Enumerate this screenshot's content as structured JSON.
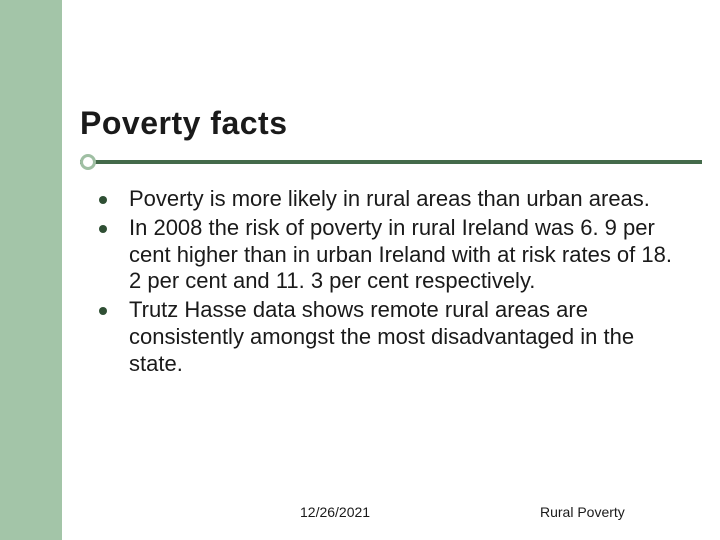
{
  "accent_color": "#a3c5a8",
  "underline_color": "#446a4a",
  "dot_border_color": "#9fbfa3",
  "bullet_color": "#2f4f34",
  "text_color": "#1a1a1a",
  "background_color": "#ffffff",
  "title": "Poverty facts",
  "title_fontsize": 32,
  "body_fontsize": 22,
  "footer_fontsize": 14,
  "bullets": [
    "Poverty is more likely in rural areas than urban areas.",
    "In 2008 the risk of poverty in rural Ireland was 6. 9 per cent higher than in urban Ireland with at risk rates of 18. 2 per cent and 11. 3 per cent respectively.",
    "Trutz Hasse data shows remote rural areas are consistently amongst the most disadvantaged in the state."
  ],
  "footer": {
    "date": "12/26/2021",
    "topic": "Rural Poverty"
  }
}
